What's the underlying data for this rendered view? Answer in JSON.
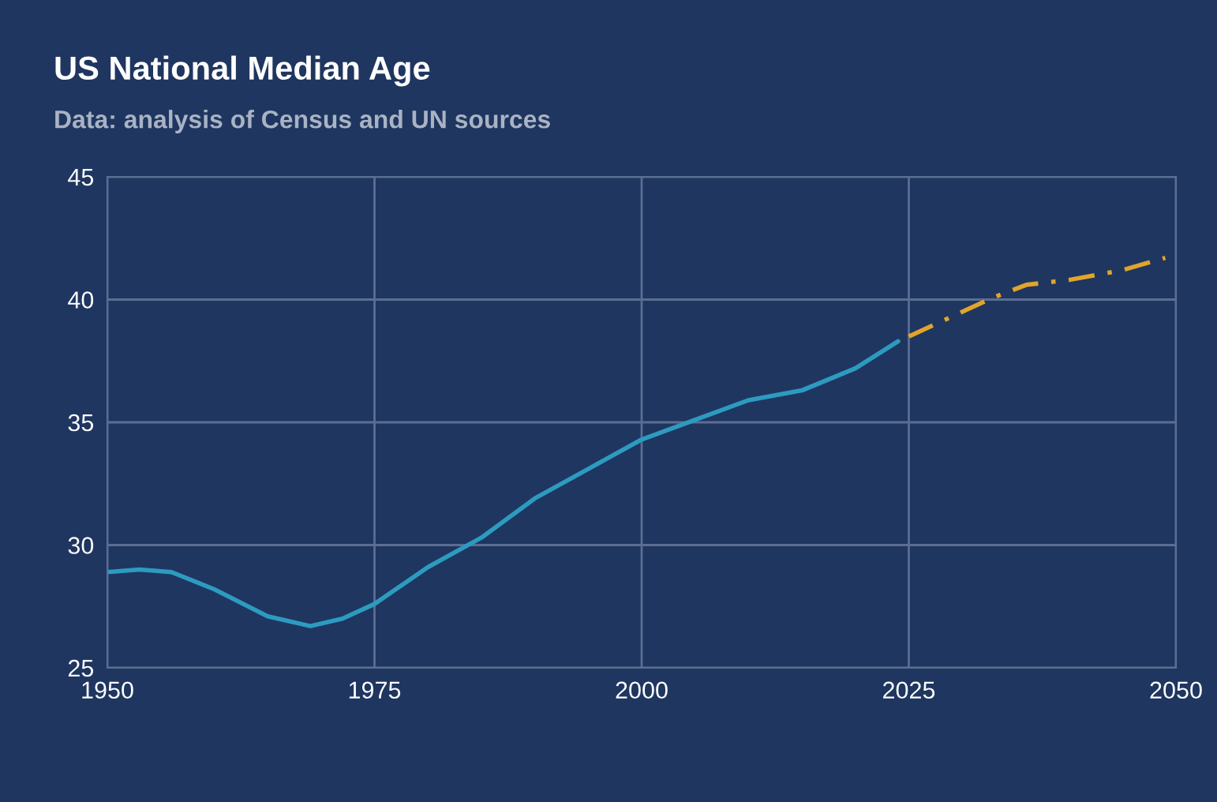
{
  "chart_data": {
    "type": "line",
    "title": "US National Median Age",
    "subtitle": "Data: analysis of Census and UN sources",
    "xlim": [
      1950,
      2050
    ],
    "xticks": [
      1950,
      1975,
      2000,
      2025,
      2050
    ],
    "ylim": [
      25,
      45
    ],
    "yticks": [
      25,
      30,
      35,
      40,
      45
    ],
    "grid": true,
    "series": [
      {
        "color": "#2d9bc0",
        "line_style": "solid",
        "x": [
          1950,
          1953,
          1956,
          1960,
          1965,
          1969,
          1972,
          1975,
          1980,
          1985,
          1990,
          1995,
          2000,
          2005,
          2010,
          2015,
          2020,
          2024
        ],
        "values": [
          28.9,
          29.0,
          28.9,
          28.2,
          27.1,
          26.7,
          27.0,
          27.6,
          29.1,
          30.3,
          31.9,
          33.1,
          34.3,
          35.1,
          35.9,
          36.3,
          37.2,
          38.3
        ]
      },
      {
        "color": "#e0a52a",
        "line_style": "dashed",
        "x": [
          2025,
          2030,
          2033,
          2036,
          2040,
          2045,
          2049
        ],
        "values": [
          38.5,
          39.5,
          40.1,
          40.6,
          40.8,
          41.2,
          41.7
        ]
      }
    ]
  }
}
